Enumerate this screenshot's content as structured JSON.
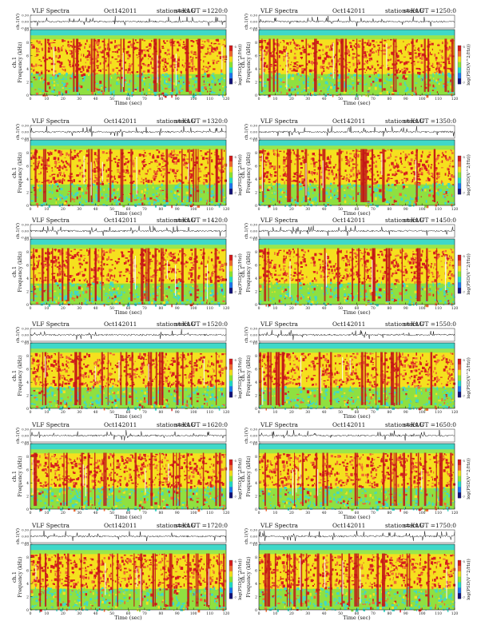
{
  "header": {
    "instrument": "VLF Spectra",
    "date": "Oct142011",
    "station": "station=KAG",
    "start_prefix": "start  UT  ="
  },
  "labels": {
    "amp_axis": "ch.1(V)",
    "freq_axis_channel": "ch.1",
    "freq_axis": "Frequency (kHz)",
    "time_axis": "Time (sec)",
    "colorbar_axis": "log(PSD(V^2/Hz))"
  },
  "chart_data": {
    "type": "heatmap",
    "panels": [
      {
        "start_ut": "1220:0"
      },
      {
        "start_ut": "1250:0"
      },
      {
        "start_ut": "1320:0"
      },
      {
        "start_ut": "1350:0"
      },
      {
        "start_ut": "1420:0"
      },
      {
        "start_ut": "1450:0"
      },
      {
        "start_ut": "1520:0"
      },
      {
        "start_ut": "1550:0"
      },
      {
        "start_ut": "1620:0"
      },
      {
        "start_ut": "1650:0"
      },
      {
        "start_ut": "1720:0"
      },
      {
        "start_ut": "1750:0"
      }
    ],
    "time_ticks": [
      "0",
      "10",
      "20",
      "30",
      "40",
      "50",
      "60",
      "70",
      "80",
      "90",
      "100",
      "110",
      "120"
    ],
    "freq_ticks": [
      "0",
      "2",
      "4",
      "6",
      "8",
      "10"
    ],
    "amp_ticks": [
      "0.30",
      "0.00",
      "-0.30"
    ],
    "colorbar_ticks": [
      "-5",
      "-7"
    ],
    "xlim": [
      0,
      120
    ],
    "ylim": [
      0,
      10
    ],
    "amp_lim": [
      -0.3,
      0.3
    ],
    "colorbar_colors": [
      "#d61e1e",
      "#f06a32",
      "#f5e01e",
      "#8ce632",
      "#23dcc8",
      "#1e78f0",
      "#14147a"
    ]
  }
}
